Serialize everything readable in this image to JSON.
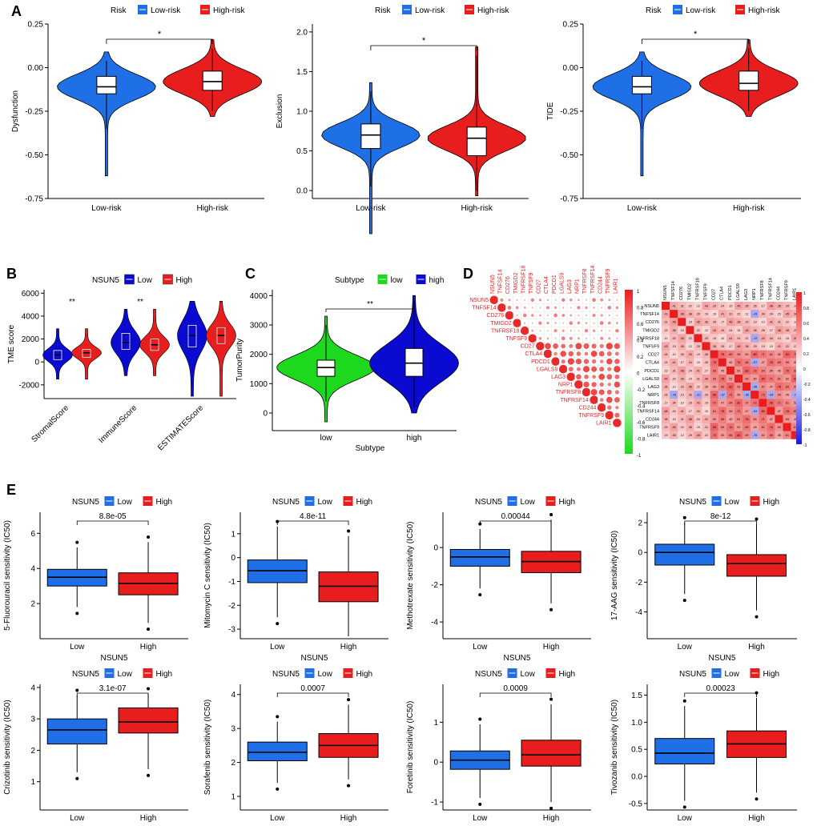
{
  "colors": {
    "low_blue": "#1F6FE6",
    "high_red": "#E81E1E",
    "green": "#1ED81E",
    "navy": "#0A0AD0",
    "box_blue": "#1F6FE6",
    "box_red": "#E81E1E"
  },
  "panel_letters": [
    "A",
    "B",
    "C",
    "D",
    "E"
  ],
  "panelA": [
    {
      "legend_title": "Risk",
      "legend_items": [
        "Low-risk",
        "High-risk"
      ],
      "ylabel": "Dysfunction",
      "yticks": [
        "-0.75",
        "-0.50",
        "-0.25",
        "0.00",
        "0.25"
      ],
      "ylim": [
        -0.75,
        0.25
      ],
      "categories": [
        "Low-risk",
        "High-risk"
      ],
      "sig": "*",
      "stats": [
        {
          "q1": -0.15,
          "med": -0.11,
          "q3": -0.05,
          "wlo": -0.35,
          "whi": 0.04
        },
        {
          "q1": -0.13,
          "med": -0.08,
          "q3": -0.02,
          "wlo": -0.25,
          "whi": 0.11
        }
      ]
    },
    {
      "legend_title": "Risk",
      "legend_items": [
        "Low-risk",
        "High-risk"
      ],
      "ylabel": "Exclusion",
      "yticks": [
        "0.0",
        "0.5",
        "1.0",
        "1.5",
        "2.0"
      ],
      "ylim": [
        -0.1,
        2.1
      ],
      "categories": [
        "Low-risk",
        "High-risk"
      ],
      "sig": "*",
      "stats": [
        {
          "q1": 0.53,
          "med": 0.7,
          "q3": 0.84,
          "wlo": 0.05,
          "whi": 1.25
        },
        {
          "q1": 0.44,
          "med": 0.66,
          "q3": 0.8,
          "wlo": 0.0,
          "whi": 1.7
        }
      ]
    },
    {
      "legend_title": "Risk",
      "legend_items": [
        "Low-risk",
        "High-risk"
      ],
      "ylabel": "TIDE",
      "yticks": [
        "-0.75",
        "-0.50",
        "-0.25",
        "0.00",
        "0.25"
      ],
      "ylim": [
        -0.75,
        0.25
      ],
      "categories": [
        "Low-risk",
        "High-risk"
      ],
      "sig": "*",
      "stats": [
        {
          "q1": -0.15,
          "med": -0.11,
          "q3": -0.05,
          "wlo": -0.35,
          "whi": 0.04
        },
        {
          "q1": -0.13,
          "med": -0.09,
          "q3": -0.02,
          "wlo": -0.25,
          "whi": 0.11
        }
      ]
    }
  ],
  "panelB": {
    "legend_title": "NSUN5",
    "legend_items": [
      "Low",
      "High"
    ],
    "ylabel": "TME score",
    "yticks": [
      "-2000",
      "0",
      "2000",
      "4000",
      "6000"
    ],
    "ylim": [
      -3200,
      6300
    ],
    "categories": [
      "StromalScore",
      "ImmuneScore",
      "ESTIMATEScore"
    ],
    "sig": [
      "**",
      "**",
      ""
    ],
    "stats": [
      [
        {
          "q1": 200,
          "med": 600,
          "q3": 1000
        },
        {
          "q1": 400,
          "med": 800,
          "q3": 1100
        }
      ],
      [
        {
          "q1": 1100,
          "med": 1700,
          "q3": 2500
        },
        {
          "q1": 1000,
          "med": 1500,
          "q3": 2000
        }
      ],
      [
        {
          "q1": 1300,
          "med": 2300,
          "q3": 3200
        },
        {
          "q1": 1600,
          "med": 2300,
          "q3": 3000
        }
      ]
    ]
  },
  "panelC": {
    "legend_title": "Subtype",
    "legend_items": [
      "low",
      "high"
    ],
    "ylabel": "TumorPurity",
    "xlabel": "Subtype",
    "yticks": [
      "0",
      "1000",
      "2000",
      "3000",
      "4000"
    ],
    "ylim": [
      -600,
      4200
    ],
    "categories": [
      "low",
      "high"
    ],
    "sig": "**",
    "stats": [
      {
        "q1": 1250,
        "med": 1550,
        "q3": 1800,
        "wlo": 400,
        "whi": 3000
      },
      {
        "q1": 1250,
        "med": 1700,
        "q3": 2200,
        "wlo": 200,
        "whi": 3800
      }
    ]
  },
  "panelD": {
    "genes": [
      "NSUN5",
      "TNFSF14",
      "CD276",
      "TMIGD2",
      "TNFRSF18",
      "TNFSF9",
      "CD27",
      "CTLA4",
      "PDCD1",
      "LGALS9",
      "LAG3",
      "NRP1",
      "TNFRSF8",
      "TNFRSF14",
      "CD244",
      "TNFRSF9",
      "LAIR1"
    ],
    "right_genes": [
      "NSUN5",
      "TNFSF14",
      "CD276",
      "TMIGD2",
      "TNFRSF18",
      "TNFSF9",
      "CD27",
      "CTLA4",
      "PDCD1",
      "LGALS9",
      "LAG3",
      "NRP1",
      "TNFRSF8",
      "TNFRSF14",
      "CD244",
      "TNFRSF9",
      "LAIR1"
    ],
    "scale_ticks": [
      "1",
      "0.8",
      "0.6",
      "0.4",
      "0.2",
      "0",
      "-0.2",
      "-0.4",
      "-0.6",
      "-0.8",
      "-1"
    ]
  },
  "panelE": [
    {
      "legend_title": "NSUN5",
      "legend_items": [
        "Low",
        "High"
      ],
      "ylabel": "5-Fluorouracil sensitivity (IC50)",
      "xlabel": "NSUN5",
      "categories": [
        "Low",
        "High"
      ],
      "pvalue": "8.8e-05",
      "yticks": [
        "2",
        "4",
        "6"
      ],
      "ylim": [
        0,
        7.2
      ],
      "stats": [
        {
          "q1": 3.0,
          "med": 3.5,
          "q3": 3.95,
          "wlo": 1.8,
          "whi": 5.2
        },
        {
          "q1": 2.5,
          "med": 3.15,
          "q3": 3.75,
          "wlo": 0.9,
          "whi": 5.5
        }
      ]
    },
    {
      "legend_title": "NSUN5",
      "legend_items": [
        "Low",
        "High"
      ],
      "ylabel": "Mitomycin C sensitivity (IC50)",
      "xlabel": "NSUN5",
      "categories": [
        "Low",
        "High"
      ],
      "pvalue": "4.8e-11",
      "yticks": [
        "-3",
        "-2",
        "-1",
        "0",
        "1"
      ],
      "ylim": [
        -3.4,
        1.9
      ],
      "stats": [
        {
          "q1": -1.05,
          "med": -0.55,
          "q3": -0.1,
          "wlo": -2.5,
          "whi": 1.3
        },
        {
          "q1": -1.85,
          "med": -1.2,
          "q3": -0.6,
          "wlo": -3.3,
          "whi": 0.9
        }
      ]
    },
    {
      "legend_title": "NSUN5",
      "legend_items": [
        "Low",
        "High"
      ],
      "ylabel": "Methotrexate sensitivity (IC50)",
      "xlabel": "NSUN5",
      "categories": [
        "Low",
        "High"
      ],
      "pvalue": "0.00044",
      "yticks": [
        "-4",
        "-2",
        "0"
      ],
      "ylim": [
        -4.9,
        1.9
      ],
      "stats": [
        {
          "q1": -1.0,
          "med": -0.5,
          "q3": -0.1,
          "wlo": -2.2,
          "whi": 1.0
        },
        {
          "q1": -1.35,
          "med": -0.75,
          "q3": -0.2,
          "wlo": -3.0,
          "whi": 1.5
        }
      ]
    },
    {
      "legend_title": "NSUN5",
      "legend_items": [
        "Low",
        "High"
      ],
      "ylabel": "17-AAG sensitivity (IC50)",
      "xlabel": "NSUN5",
      "categories": [
        "Low",
        "High"
      ],
      "pvalue": "8e-12",
      "yticks": [
        "-4",
        "-2",
        "0",
        "2"
      ],
      "ylim": [
        -5.8,
        2.7
      ],
      "stats": [
        {
          "q1": -0.85,
          "med": 0.0,
          "q3": 0.55,
          "wlo": -2.8,
          "whi": 2.0
        },
        {
          "q1": -1.6,
          "med": -0.75,
          "q3": -0.15,
          "wlo": -3.9,
          "whi": 1.9
        }
      ]
    },
    {
      "legend_title": "NSUN5",
      "legend_items": [
        "Low",
        "High"
      ],
      "ylabel": "Crizotinib sensitivity (IC50)",
      "xlabel": "NSUN5",
      "categories": [
        "Low",
        "High"
      ],
      "pvalue": "3.1e-07",
      "yticks": [
        "1",
        "2",
        "3",
        "4"
      ],
      "ylim": [
        0.1,
        4.1
      ],
      "stats": [
        {
          "q1": 2.2,
          "med": 2.65,
          "q3": 3.0,
          "wlo": 1.3,
          "whi": 3.75
        },
        {
          "q1": 2.55,
          "med": 2.9,
          "q3": 3.35,
          "wlo": 1.4,
          "whi": 3.8
        }
      ]
    },
    {
      "legend_title": "NSUN5",
      "legend_items": [
        "Low",
        "High"
      ],
      "ylabel": "Sorafenib sensitivity (IC50)",
      "xlabel": "NSUN5",
      "categories": [
        "Low",
        "High"
      ],
      "pvalue": "0.0007",
      "yticks": [
        "1",
        "2",
        "3",
        "4"
      ],
      "ylim": [
        0.6,
        4.3
      ],
      "stats": [
        {
          "q1": 2.05,
          "med": 2.3,
          "q3": 2.6,
          "wlo": 1.4,
          "whi": 3.2
        },
        {
          "q1": 2.15,
          "med": 2.5,
          "q3": 2.85,
          "wlo": 1.5,
          "whi": 3.7
        }
      ]
    },
    {
      "legend_title": "NSUN5",
      "legend_items": [
        "Low",
        "High"
      ],
      "ylabel": "Foretinib sensitivity (IC50)",
      "xlabel": "NSUN5",
      "categories": [
        "Low",
        "High"
      ],
      "pvalue": "0.0009",
      "yticks": [
        "-1",
        "0",
        "1"
      ],
      "ylim": [
        -1.2,
        1.95
      ],
      "stats": [
        {
          "q1": -0.18,
          "med": 0.05,
          "q3": 0.28,
          "wlo": -0.9,
          "whi": 0.95
        },
        {
          "q1": -0.1,
          "med": 0.18,
          "q3": 0.55,
          "wlo": -1.0,
          "whi": 1.45
        }
      ]
    },
    {
      "legend_title": "NSUN5",
      "legend_items": [
        "Low",
        "High"
      ],
      "ylabel": "Tivozanib sensitivity (IC50)",
      "xlabel": "NSUN5",
      "categories": [
        "Low",
        "High"
      ],
      "pvalue": "0.00023",
      "yticks": [
        "-0.5",
        "0.0",
        "0.5",
        "1.0",
        "1.5"
      ],
      "ylim": [
        -0.62,
        1.7
      ],
      "stats": [
        {
          "q1": 0.23,
          "med": 0.43,
          "q3": 0.7,
          "wlo": -0.45,
          "whi": 1.3
        },
        {
          "q1": 0.35,
          "med": 0.6,
          "q3": 0.84,
          "wlo": -0.3,
          "whi": 1.45
        }
      ]
    }
  ]
}
